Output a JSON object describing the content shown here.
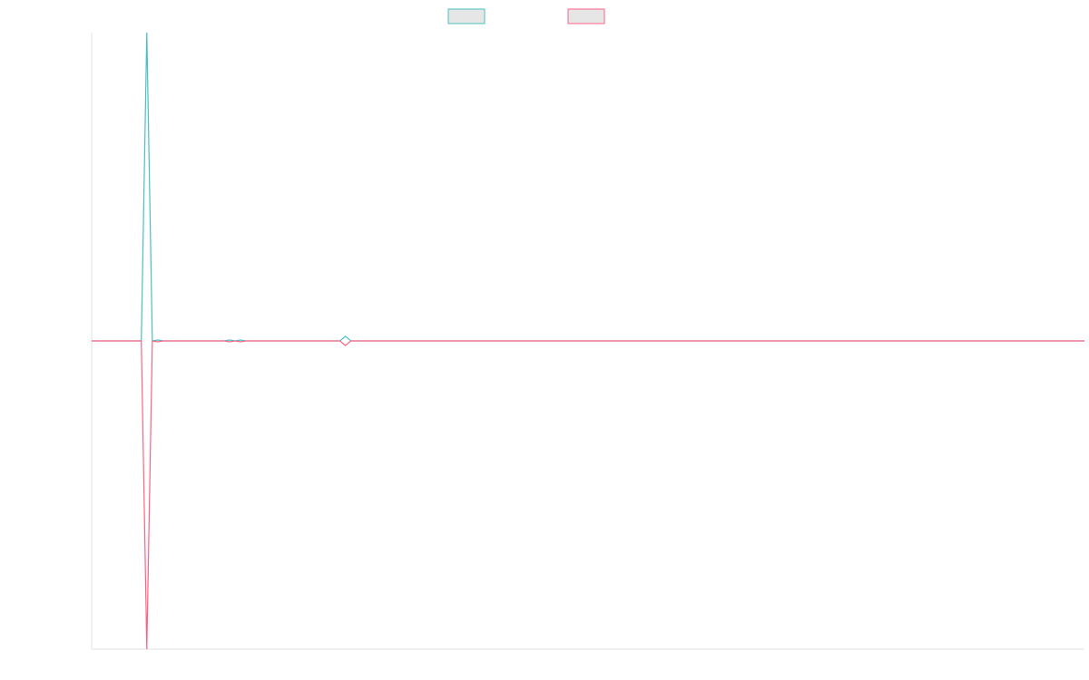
{
  "chart_data": {
    "type": "line",
    "x": [
      0,
      9,
      10,
      11,
      12,
      13,
      24,
      25,
      26,
      27,
      28,
      45,
      46,
      47,
      180
    ],
    "xlim": [
      0,
      180
    ],
    "ylim": [
      -100,
      100
    ],
    "grid": false,
    "legend": "top",
    "series": [
      {
        "color": "#4bc0c0",
        "values": [
          0,
          0,
          100,
          0,
          0.3,
          0,
          0,
          0.3,
          0,
          0.3,
          0,
          0,
          1.5,
          0,
          0
        ]
      },
      {
        "color": "#ff6384",
        "values": [
          0,
          0,
          -100,
          0,
          -0.3,
          0,
          0,
          -0.3,
          0,
          -0.3,
          0,
          0,
          -1.5,
          0,
          0
        ]
      }
    ]
  }
}
